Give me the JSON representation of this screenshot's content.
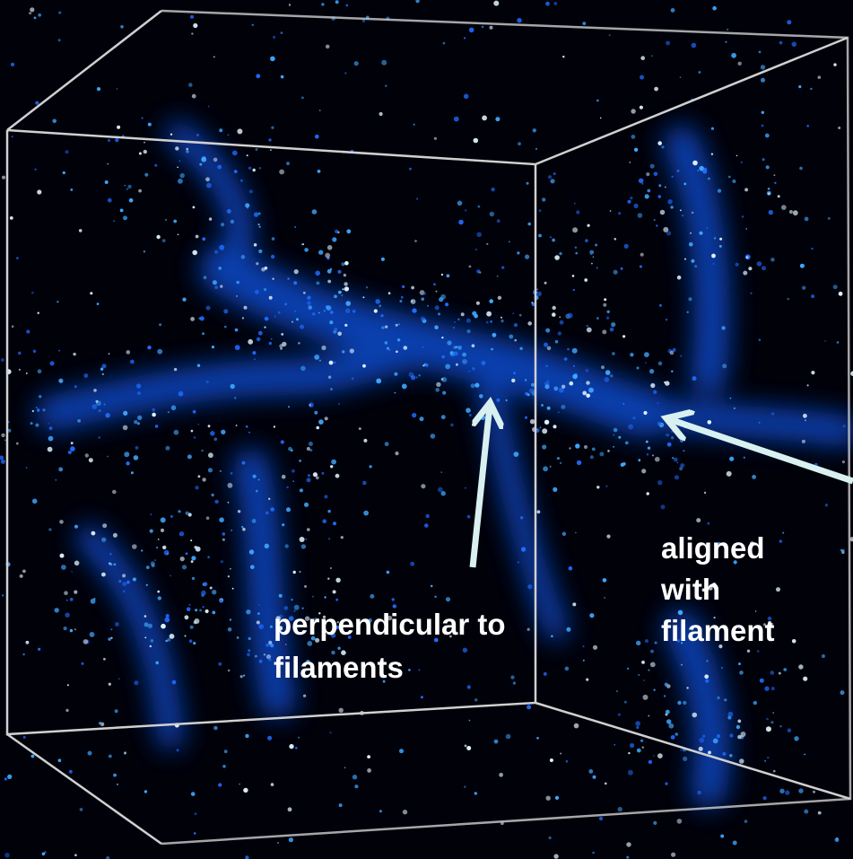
{
  "annotations": [
    {
      "lines": [
        "perpendicular to",
        "filaments"
      ]
    },
    {
      "lines": [
        "aligned",
        "with",
        "filament"
      ]
    }
  ]
}
